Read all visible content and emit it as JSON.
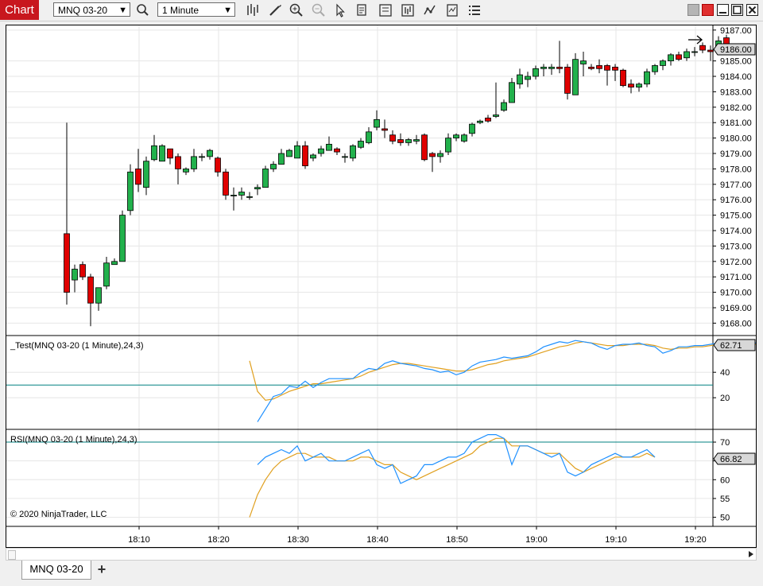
{
  "toolbar": {
    "chart_tab": "Chart",
    "instrument": "MNQ 03-20",
    "interval": "1 Minute",
    "icons": [
      "search-icon",
      "bar-type-icon",
      "draw-icon",
      "zoom-in-icon",
      "zoom-out-icon",
      "cursor-icon",
      "data-box-icon",
      "properties-icon",
      "strategies-icon",
      "indicators-icon",
      "templates-icon",
      "menu-icon"
    ]
  },
  "window_controls": [
    "color-swatch",
    "restore",
    "minimize",
    "maximize",
    "close"
  ],
  "price_panel": {
    "y_ticks": [
      "9187.00",
      "9185.00",
      "9184.00",
      "9183.00",
      "9182.00",
      "9181.00",
      "9180.00",
      "9179.00",
      "9178.00",
      "9177.00",
      "9176.00",
      "9175.00",
      "9174.00",
      "9173.00",
      "9172.00",
      "9171.00",
      "9170.00",
      "9169.00",
      "9168.00"
    ],
    "last_price": "9186.00",
    "copyright": "© 2020 NinjaTrader, LLC"
  },
  "test_panel": {
    "label": "_Test(MNQ 03-20 (1 Minute),24,3)",
    "y_ticks": [
      "40",
      "20"
    ],
    "last_value": "62.71"
  },
  "rsi_panel": {
    "label": "RSI(MNQ 03-20 (1 Minute),24,3)",
    "y_ticks": [
      "70",
      "65",
      "60",
      "55",
      "50"
    ],
    "last_value": "66.82"
  },
  "x_ticks": [
    "18:10",
    "18:20",
    "18:30",
    "18:40",
    "18:50",
    "19:00",
    "19:10",
    "19:20"
  ],
  "bottom_tab": "MNQ 03-20",
  "colors": {
    "up": "#22b14c",
    "down": "#e00000",
    "rsi_line": "#1e90ff",
    "avg_line": "#e0a020",
    "level": "#008080",
    "brand": "#c8171e"
  },
  "chart_data": {
    "type": "candlestick",
    "x_start": "18:00",
    "interval_minutes": 1,
    "ylim": [
      9167.3,
      9187.3
    ],
    "candles": [
      {
        "o": 9173.8,
        "h": 9181.0,
        "l": 9169.2,
        "c": 9170.0
      },
      {
        "o": 9170.8,
        "h": 9171.8,
        "l": 9170.0,
        "c": 9171.5
      },
      {
        "o": 9171.8,
        "h": 9172.0,
        "l": 9170.8,
        "c": 9171.0
      },
      {
        "o": 9171.0,
        "h": 9171.2,
        "l": 9167.8,
        "c": 9169.3
      },
      {
        "o": 9169.3,
        "h": 9170.2,
        "l": 9168.8,
        "c": 9170.3
      },
      {
        "o": 9170.4,
        "h": 9172.3,
        "l": 9170.2,
        "c": 9171.9
      },
      {
        "o": 9171.8,
        "h": 9172.2,
        "l": 9171.8,
        "c": 9172.0
      },
      {
        "o": 9172.0,
        "h": 9175.3,
        "l": 9172.0,
        "c": 9175.0
      },
      {
        "o": 9175.3,
        "h": 9178.3,
        "l": 9175.0,
        "c": 9177.8
      },
      {
        "o": 9178.0,
        "h": 9179.3,
        "l": 9176.5,
        "c": 9177.0
      },
      {
        "o": 9176.8,
        "h": 9178.8,
        "l": 9176.3,
        "c": 9178.5
      },
      {
        "o": 9178.6,
        "h": 9180.2,
        "l": 9178.5,
        "c": 9179.5
      },
      {
        "o": 9178.5,
        "h": 9179.6,
        "l": 9178.5,
        "c": 9179.5
      },
      {
        "o": 9179.3,
        "h": 9179.3,
        "l": 9178.3,
        "c": 9178.7
      },
      {
        "o": 9178.8,
        "h": 9179.0,
        "l": 9177.0,
        "c": 9178.0
      },
      {
        "o": 9177.8,
        "h": 9178.1,
        "l": 9177.6,
        "c": 9178.0
      },
      {
        "o": 9178.0,
        "h": 9179.3,
        "l": 9177.8,
        "c": 9178.8
      },
      {
        "o": 9178.8,
        "h": 9179.0,
        "l": 9178.5,
        "c": 9178.8
      },
      {
        "o": 9178.8,
        "h": 9179.3,
        "l": 9178.6,
        "c": 9179.2
      },
      {
        "o": 9178.7,
        "h": 9178.8,
        "l": 9177.5,
        "c": 9177.8
      },
      {
        "o": 9177.8,
        "h": 9178.0,
        "l": 9176.0,
        "c": 9176.3
      },
      {
        "o": 9176.3,
        "h": 9176.8,
        "l": 9175.3,
        "c": 9176.3
      },
      {
        "o": 9176.3,
        "h": 9176.8,
        "l": 9176.0,
        "c": 9176.5
      },
      {
        "o": 9176.2,
        "h": 9176.5,
        "l": 9176.0,
        "c": 9176.2
      },
      {
        "o": 9176.7,
        "h": 9177.0,
        "l": 9176.3,
        "c": 9176.8
      },
      {
        "o": 9176.8,
        "h": 9178.2,
        "l": 9176.8,
        "c": 9178.0
      },
      {
        "o": 9178.0,
        "h": 9178.5,
        "l": 9177.8,
        "c": 9178.3
      },
      {
        "o": 9178.3,
        "h": 9179.3,
        "l": 9178.3,
        "c": 9179.0
      },
      {
        "o": 9178.8,
        "h": 9179.3,
        "l": 9178.8,
        "c": 9179.2
      },
      {
        "o": 9178.7,
        "h": 9179.8,
        "l": 9178.7,
        "c": 9179.5
      },
      {
        "o": 9179.5,
        "h": 9179.8,
        "l": 9178.0,
        "c": 9178.2
      },
      {
        "o": 9178.7,
        "h": 9179.0,
        "l": 9178.5,
        "c": 9178.9
      },
      {
        "o": 9179.0,
        "h": 9179.5,
        "l": 9178.8,
        "c": 9179.3
      },
      {
        "o": 9179.2,
        "h": 9180.1,
        "l": 9179.2,
        "c": 9179.6
      },
      {
        "o": 9179.3,
        "h": 9179.4,
        "l": 9178.9,
        "c": 9179.1
      },
      {
        "o": 9178.8,
        "h": 9179.0,
        "l": 9178.4,
        "c": 9178.8
      },
      {
        "o": 9178.7,
        "h": 9179.6,
        "l": 9178.5,
        "c": 9179.5
      },
      {
        "o": 9179.4,
        "h": 9180.0,
        "l": 9179.3,
        "c": 9179.8
      },
      {
        "o": 9179.7,
        "h": 9180.7,
        "l": 9179.6,
        "c": 9180.4
      },
      {
        "o": 9180.7,
        "h": 9181.8,
        "l": 9180.5,
        "c": 9181.2
      },
      {
        "o": 9180.6,
        "h": 9181.2,
        "l": 9180.0,
        "c": 9180.5
      },
      {
        "o": 9180.2,
        "h": 9180.5,
        "l": 9179.6,
        "c": 9179.8
      },
      {
        "o": 9179.9,
        "h": 9180.3,
        "l": 9179.5,
        "c": 9179.7
      },
      {
        "o": 9179.7,
        "h": 9180.0,
        "l": 9179.5,
        "c": 9179.9
      },
      {
        "o": 9179.8,
        "h": 9180.2,
        "l": 9179.6,
        "c": 9179.9
      },
      {
        "o": 9180.2,
        "h": 9180.3,
        "l": 9178.5,
        "c": 9178.6
      },
      {
        "o": 9179.0,
        "h": 9179.1,
        "l": 9177.8,
        "c": 9178.8
      },
      {
        "o": 9178.8,
        "h": 9179.2,
        "l": 9178.4,
        "c": 9179.0
      },
      {
        "o": 9179.1,
        "h": 9180.3,
        "l": 9178.9,
        "c": 9180.0
      },
      {
        "o": 9180.0,
        "h": 9180.3,
        "l": 9179.8,
        "c": 9180.2
      },
      {
        "o": 9179.8,
        "h": 9180.3,
        "l": 9179.7,
        "c": 9180.2
      },
      {
        "o": 9180.3,
        "h": 9181.0,
        "l": 9180.1,
        "c": 9180.9
      },
      {
        "o": 9181.0,
        "h": 9181.2,
        "l": 9180.9,
        "c": 9181.1
      },
      {
        "o": 9181.3,
        "h": 9181.5,
        "l": 9181.0,
        "c": 9181.1
      },
      {
        "o": 9181.4,
        "h": 9183.6,
        "l": 9181.3,
        "c": 9181.5
      },
      {
        "o": 9181.8,
        "h": 9182.5,
        "l": 9181.7,
        "c": 9182.3
      },
      {
        "o": 9182.3,
        "h": 9183.9,
        "l": 9182.3,
        "c": 9183.6
      },
      {
        "o": 9183.5,
        "h": 9184.5,
        "l": 9183.2,
        "c": 9184.1
      },
      {
        "o": 9183.8,
        "h": 9184.3,
        "l": 9183.3,
        "c": 9184.0
      },
      {
        "o": 9184.0,
        "h": 9184.7,
        "l": 9183.8,
        "c": 9184.5
      },
      {
        "o": 9184.5,
        "h": 9184.8,
        "l": 9184.0,
        "c": 9184.6
      },
      {
        "o": 9184.5,
        "h": 9184.8,
        "l": 9184.1,
        "c": 9184.6
      },
      {
        "o": 9184.6,
        "h": 9186.3,
        "l": 9184.2,
        "c": 9184.5
      },
      {
        "o": 9184.6,
        "h": 9184.8,
        "l": 9182.5,
        "c": 9182.9
      },
      {
        "o": 9182.8,
        "h": 9185.5,
        "l": 9182.8,
        "c": 9185.1
      },
      {
        "o": 9184.8,
        "h": 9185.6,
        "l": 9184.0,
        "c": 9185.0
      },
      {
        "o": 9184.6,
        "h": 9184.8,
        "l": 9184.4,
        "c": 9184.5
      },
      {
        "o": 9184.7,
        "h": 9185.1,
        "l": 9184.2,
        "c": 9184.5
      },
      {
        "o": 9184.7,
        "h": 9184.8,
        "l": 9183.4,
        "c": 9184.4
      },
      {
        "o": 9184.6,
        "h": 9184.8,
        "l": 9183.7,
        "c": 9184.4
      },
      {
        "o": 9184.4,
        "h": 9184.5,
        "l": 9183.3,
        "c": 9183.4
      },
      {
        "o": 9183.5,
        "h": 9183.8,
        "l": 9182.9,
        "c": 9183.3
      },
      {
        "o": 9183.3,
        "h": 9183.6,
        "l": 9183.0,
        "c": 9183.5
      },
      {
        "o": 9183.5,
        "h": 9184.5,
        "l": 9183.3,
        "c": 9184.3
      },
      {
        "o": 9184.3,
        "h": 9184.8,
        "l": 9184.1,
        "c": 9184.7
      },
      {
        "o": 9184.7,
        "h": 9185.1,
        "l": 9184.4,
        "c": 9185.0
      },
      {
        "o": 9185.0,
        "h": 9185.5,
        "l": 9184.7,
        "c": 9185.4
      },
      {
        "o": 9185.4,
        "h": 9185.6,
        "l": 9185.0,
        "c": 9185.1
      },
      {
        "o": 9185.2,
        "h": 9185.8,
        "l": 9185.0,
        "c": 9185.6
      },
      {
        "o": 9185.6,
        "h": 9185.9,
        "l": 9185.3,
        "c": 9185.6
      },
      {
        "o": 9186.0,
        "h": 9186.2,
        "l": 9185.5,
        "c": 9185.7
      },
      {
        "o": 9185.7,
        "h": 9186.0,
        "l": 9185.0,
        "c": 9185.6
      },
      {
        "o": 9185.8,
        "h": 9186.6,
        "l": 9185.4,
        "c": 9186.3
      },
      {
        "o": 9186.5,
        "h": 9186.7,
        "l": 9185.8,
        "c": 9186.0
      }
    ],
    "test_indicator": {
      "ylim": [
        0,
        66
      ],
      "level": 30,
      "start_index": 23,
      "main": [
        null,
        1,
        11,
        21,
        23,
        29,
        28,
        33,
        28,
        32,
        35,
        35,
        35,
        35,
        40,
        43,
        42,
        47,
        49,
        47,
        46,
        45,
        43,
        42,
        40,
        41,
        38,
        40,
        45,
        48,
        49,
        50,
        52,
        51,
        52,
        53,
        56,
        60,
        62,
        64,
        63,
        65,
        64,
        63,
        60,
        58,
        61,
        62,
        62,
        63,
        61,
        60,
        55,
        57,
        60,
        60,
        61,
        61,
        62,
        63,
        62,
        63,
        62,
        63,
        63
      ],
      "signal": [
        49,
        25,
        18,
        19,
        22,
        25,
        27,
        29,
        31,
        31,
        32,
        33,
        34,
        35,
        37,
        40,
        42,
        44,
        46,
        47,
        47,
        46,
        45,
        44,
        43,
        42,
        41,
        41,
        42,
        44,
        46,
        47,
        49,
        50,
        51,
        52,
        54,
        56,
        58,
        60,
        61,
        63,
        64,
        63,
        62,
        61,
        61,
        61,
        62,
        62,
        62,
        61,
        59,
        58,
        59,
        59,
        60,
        60,
        61,
        62,
        62,
        62,
        62,
        62,
        62
      ]
    },
    "rsi": {
      "ylim": [
        48.5,
        73.0
      ],
      "level": 70,
      "start_index": 23,
      "main": [
        null,
        64,
        66,
        67,
        68,
        67,
        69,
        65,
        66,
        67,
        65,
        65,
        65,
        66,
        67,
        68,
        64,
        63,
        64,
        59,
        60,
        61,
        64,
        64,
        65,
        66,
        66,
        67,
        70,
        71,
        72,
        72,
        71,
        64,
        69,
        69,
        68,
        67,
        66,
        67,
        62,
        61,
        62,
        64,
        65,
        66,
        67,
        66,
        66,
        67,
        68,
        66
      ],
      "signal": [
        50,
        56,
        60,
        63,
        65,
        66,
        67,
        67,
        66,
        66,
        66,
        65,
        65,
        65,
        66,
        66,
        65,
        64,
        64,
        62,
        61,
        60,
        61,
        62,
        63,
        64,
        65,
        66,
        67,
        69,
        70,
        71,
        71,
        69,
        69,
        69,
        68,
        67,
        67,
        67,
        65,
        63,
        62,
        63,
        64,
        65,
        66,
        66,
        66,
        66,
        67,
        66
      ]
    }
  }
}
